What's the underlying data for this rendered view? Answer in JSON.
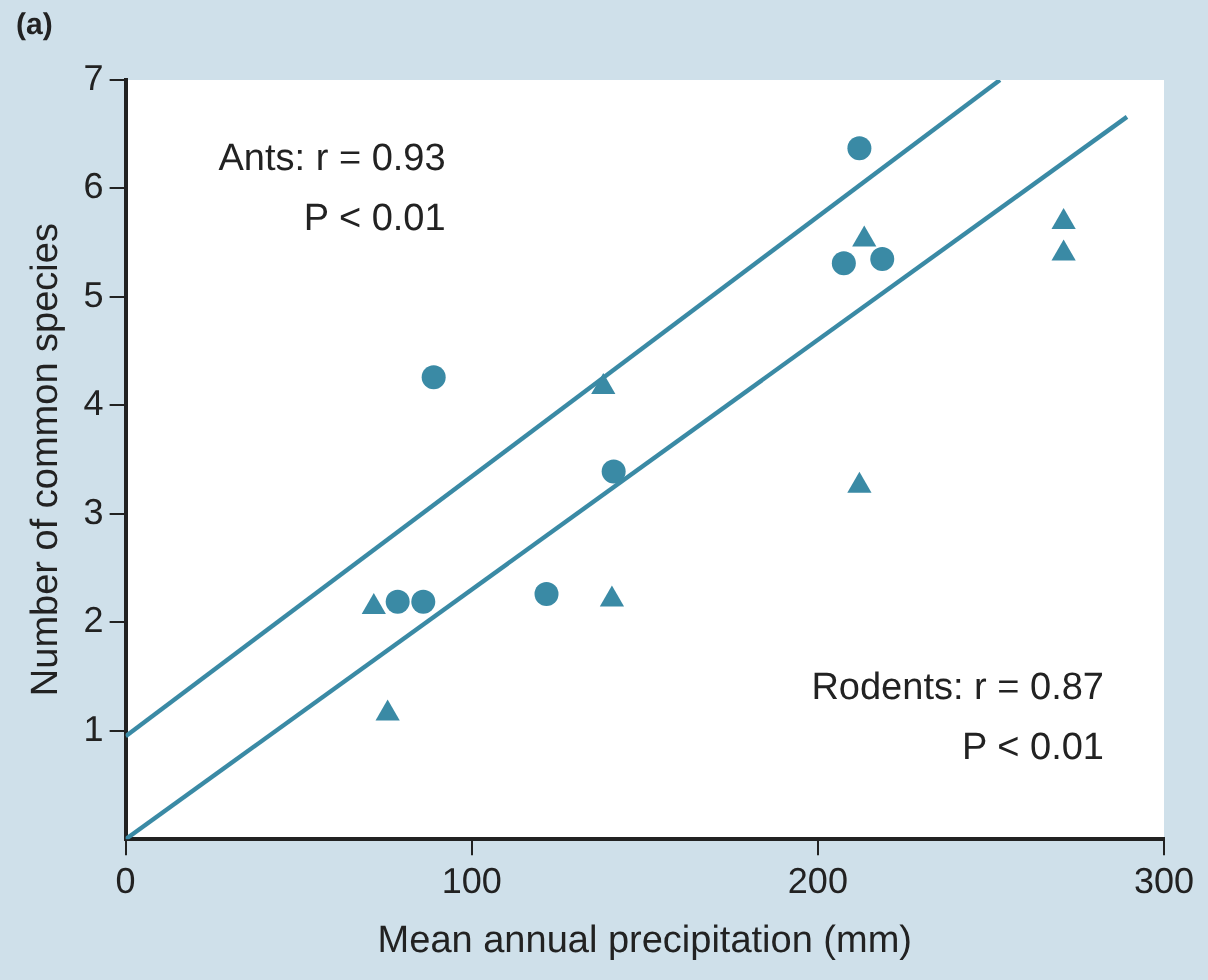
{
  "chart_data": {
    "type": "scatter",
    "title": "(a)",
    "xlabel": "Mean annual precipitation (mm)",
    "ylabel": "Number of common species",
    "xlim": [
      0,
      300
    ],
    "xticks": [
      0,
      100,
      200,
      300
    ],
    "ylim": [
      0,
      7
    ],
    "yticks": [
      1,
      2,
      3,
      4,
      5,
      6,
      7
    ],
    "grid": false,
    "legend": false,
    "series": [
      {
        "marker": "circle",
        "color": "#3a8aa5",
        "x": [
          212,
          207.5,
          218.6,
          89,
          141,
          78.6,
          86,
          121.6
        ],
        "values": [
          6.37,
          5.31,
          5.35,
          4.26,
          3.39,
          2.19,
          2.19,
          2.26
        ]
      },
      {
        "marker": "triangle",
        "color": "#3a8aa5",
        "x": [
          71.7,
          75.7,
          138,
          140.5,
          212,
          213.4,
          271,
          271
        ],
        "values": [
          2.14,
          1.16,
          4.17,
          2.21,
          3.26,
          5.53,
          5.69,
          5.4
        ]
      },
      {
        "type": "line",
        "marker": "none",
        "color": "#3a8aa5",
        "x": [
          0,
          252.6
        ],
        "values": [
          0.95,
          7
        ]
      },
      {
        "type": "line",
        "marker": "none",
        "color": "#3a8aa5",
        "x": [
          0,
          289.3
        ],
        "values": [
          0,
          6.66
        ]
      }
    ],
    "annotations": [
      "Ants: r = 0.93\nP < 0.01",
      "Rodents: r = 0.87\nP < 0.01"
    ]
  }
}
